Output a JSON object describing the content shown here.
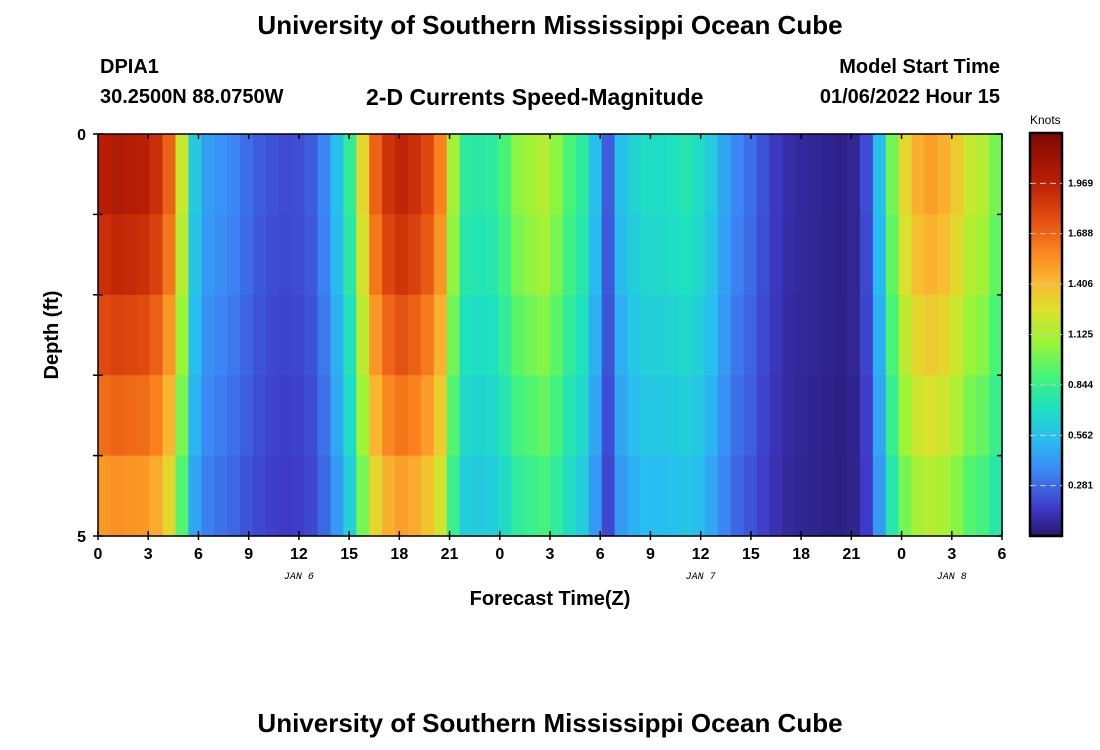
{
  "header": {
    "title": "University of Southern Mississippi Ocean Cube",
    "station_id": "DPIA1",
    "station_coords": "30.2500N  88.0750W",
    "chart_title": "2-D Currents Speed-Magnitude",
    "model_start_label": "Model Start Time",
    "model_start_value": "01/06/2022 Hour 15"
  },
  "footer": {
    "title": "University of Southern Mississippi Ocean Cube"
  },
  "chart_data": {
    "type": "heatmap",
    "xlabel": "Forecast Time(Z)",
    "ylabel": "Depth (ft)",
    "x_tick_labels": [
      "0",
      "3",
      "6",
      "9",
      "12",
      "15",
      "18",
      "21",
      "0",
      "3",
      "6",
      "9",
      "12",
      "15",
      "18",
      "21",
      "0",
      "3",
      "6"
    ],
    "x_range_hours": [
      0,
      54
    ],
    "date_labels": [
      {
        "text": "JAN 6",
        "hour": 12
      },
      {
        "text": "JAN 7",
        "hour": 36
      },
      {
        "text": "JAN 8",
        "hour": 51
      }
    ],
    "y_tick_labels": [
      "0",
      "5"
    ],
    "ylim": [
      0,
      5
    ],
    "colorbar": {
      "title": "Knots",
      "tick_labels": [
        "1.969",
        "1.688",
        "1.406",
        "1.125",
        "0.844",
        "0.562",
        "0.281"
      ],
      "range": [
        0,
        2.25
      ]
    },
    "depth_rows": 5,
    "speed_by_hour_knots": [
      1.98,
      2.02,
      2.0,
      1.98,
      1.9,
      1.7,
      1.2,
      0.6,
      0.44,
      0.4,
      0.36,
      0.3,
      0.25,
      0.22,
      0.2,
      0.21,
      0.25,
      0.36,
      0.55,
      0.82,
      1.3,
      1.7,
      1.88,
      1.95,
      1.9,
      1.8,
      1.6,
      1.1,
      0.8,
      0.78,
      0.8,
      0.9,
      1.05,
      1.1,
      1.15,
      1.05,
      0.9,
      0.8,
      0.55,
      0.25,
      0.55,
      0.65,
      0.7,
      0.7,
      0.72,
      0.75,
      0.7,
      0.6,
      0.46,
      0.36,
      0.3,
      0.22,
      0.15,
      0.1,
      0.08,
      0.07,
      0.06,
      0.05,
      0.07,
      0.2,
      0.55,
      1.0,
      1.3,
      1.45,
      1.5,
      1.45,
      1.35,
      1.2,
      1.15,
      1.0
    ],
    "depth_factors": [
      1.0,
      0.96,
      0.9,
      0.84,
      0.77
    ]
  }
}
